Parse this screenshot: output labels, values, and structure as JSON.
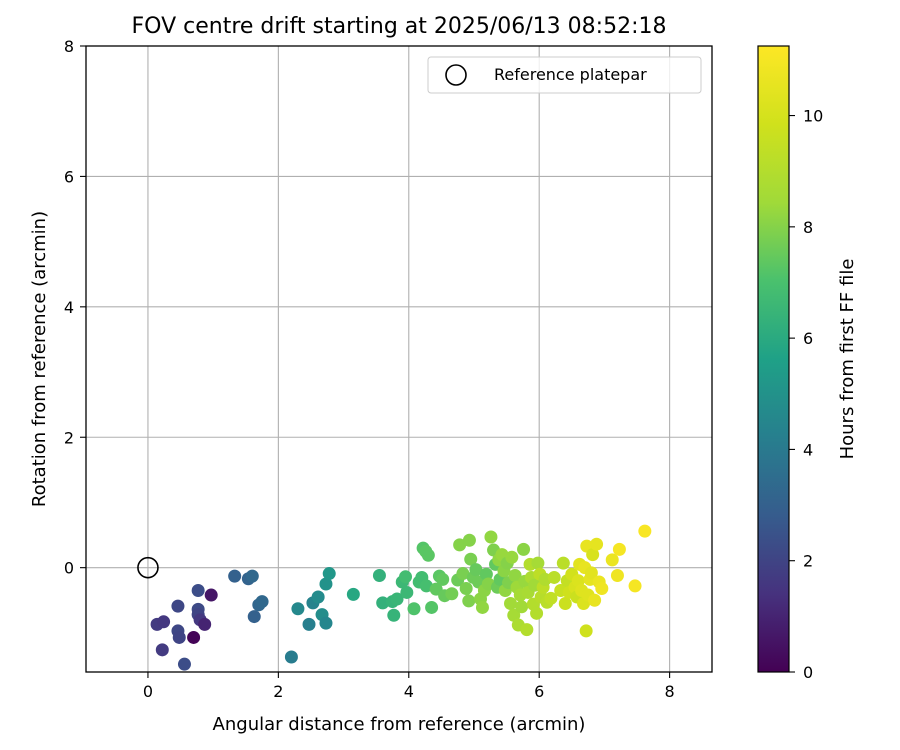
{
  "chart_data": {
    "type": "scatter",
    "title": "FOV centre drift starting at 2025/06/13 08:52:18",
    "xlabel": "Angular distance from reference (arcmin)",
    "ylabel": "Rotation from reference (arcmin)",
    "xlim": [
      -0.95,
      8.65
    ],
    "ylim": [
      -1.6,
      8.0
    ],
    "xticks": [
      0,
      2,
      4,
      6,
      8
    ],
    "yticks": [
      0,
      2,
      4,
      6,
      8
    ],
    "grid": true,
    "legend": {
      "position": "top-right",
      "entries": [
        "Reference platepar"
      ]
    },
    "reference_point": {
      "x": 0,
      "y": 0,
      "label": "Reference platepar"
    },
    "colorbar": {
      "label": "Hours from first FF file",
      "range": [
        0,
        11.25
      ],
      "ticks": [
        0,
        2,
        4,
        6,
        8,
        10
      ],
      "colormap": "viridis"
    },
    "points": [
      {
        "x": 0.14,
        "y": -0.87,
        "h": 1.7
      },
      {
        "x": 0.24,
        "y": -0.83,
        "h": 1.6
      },
      {
        "x": 0.22,
        "y": -1.26,
        "h": 1.7
      },
      {
        "x": 0.46,
        "y": -0.59,
        "h": 2.1
      },
      {
        "x": 0.46,
        "y": -0.97,
        "h": 2.1
      },
      {
        "x": 0.48,
        "y": -1.07,
        "h": 2.0
      },
      {
        "x": 0.56,
        "y": -1.48,
        "h": 2.3
      },
      {
        "x": 0.7,
        "y": -1.07,
        "h": 0.1
      },
      {
        "x": 0.77,
        "y": -0.35,
        "h": 2.3
      },
      {
        "x": 0.77,
        "y": -0.64,
        "h": 2.2
      },
      {
        "x": 0.77,
        "y": -0.72,
        "h": 2.0
      },
      {
        "x": 0.8,
        "y": -0.8,
        "h": 1.6
      },
      {
        "x": 0.87,
        "y": -0.87,
        "h": 1.0
      },
      {
        "x": 0.97,
        "y": -0.42,
        "h": 0.6
      },
      {
        "x": 1.33,
        "y": -0.13,
        "h": 3.0
      },
      {
        "x": 1.54,
        "y": -0.17,
        "h": 3.1
      },
      {
        "x": 1.6,
        "y": -0.13,
        "h": 3.3
      },
      {
        "x": 1.63,
        "y": -0.75,
        "h": 3.0
      },
      {
        "x": 1.7,
        "y": -0.57,
        "h": 3.2
      },
      {
        "x": 1.75,
        "y": -0.52,
        "h": 3.3
      },
      {
        "x": 2.2,
        "y": -1.37,
        "h": 4.1
      },
      {
        "x": 2.3,
        "y": -0.63,
        "h": 4.6
      },
      {
        "x": 2.47,
        "y": -0.87,
        "h": 4.2
      },
      {
        "x": 2.53,
        "y": -0.54,
        "h": 4.4
      },
      {
        "x": 2.61,
        "y": -0.45,
        "h": 4.7
      },
      {
        "x": 2.67,
        "y": -0.72,
        "h": 4.8
      },
      {
        "x": 2.73,
        "y": -0.85,
        "h": 4.5
      },
      {
        "x": 2.73,
        "y": -0.25,
        "h": 5.0
      },
      {
        "x": 2.78,
        "y": -0.09,
        "h": 5.2
      },
      {
        "x": 3.15,
        "y": -0.41,
        "h": 5.9
      },
      {
        "x": 3.55,
        "y": -0.12,
        "h": 6.3
      },
      {
        "x": 3.6,
        "y": -0.54,
        "h": 6.3
      },
      {
        "x": 3.75,
        "y": -0.52,
        "h": 6.4
      },
      {
        "x": 3.77,
        "y": -0.73,
        "h": 6.4
      },
      {
        "x": 3.82,
        "y": -0.48,
        "h": 6.5
      },
      {
        "x": 3.9,
        "y": -0.22,
        "h": 6.6
      },
      {
        "x": 3.95,
        "y": -0.14,
        "h": 6.8
      },
      {
        "x": 3.97,
        "y": -0.38,
        "h": 6.6
      },
      {
        "x": 4.08,
        "y": -0.63,
        "h": 7.1
      },
      {
        "x": 4.16,
        "y": -0.22,
        "h": 6.8
      },
      {
        "x": 4.2,
        "y": -0.15,
        "h": 6.8
      },
      {
        "x": 4.22,
        "y": 0.3,
        "h": 7.2
      },
      {
        "x": 4.26,
        "y": 0.25,
        "h": 7.3
      },
      {
        "x": 4.3,
        "y": 0.19,
        "h": 7.3
      },
      {
        "x": 4.27,
        "y": -0.28,
        "h": 6.9
      },
      {
        "x": 4.35,
        "y": -0.61,
        "h": 7.2
      },
      {
        "x": 4.42,
        "y": -0.33,
        "h": 7.4
      },
      {
        "x": 4.47,
        "y": -0.13,
        "h": 7.3
      },
      {
        "x": 4.52,
        "y": -0.18,
        "h": 7.4
      },
      {
        "x": 4.55,
        "y": -0.43,
        "h": 7.5
      },
      {
        "x": 4.66,
        "y": -0.4,
        "h": 7.7
      },
      {
        "x": 4.75,
        "y": -0.19,
        "h": 7.6
      },
      {
        "x": 4.78,
        "y": 0.35,
        "h": 8.0
      },
      {
        "x": 4.83,
        "y": -0.09,
        "h": 7.8
      },
      {
        "x": 4.88,
        "y": -0.32,
        "h": 7.8
      },
      {
        "x": 4.92,
        "y": -0.51,
        "h": 7.9
      },
      {
        "x": 4.93,
        "y": 0.42,
        "h": 8.0
      },
      {
        "x": 4.95,
        "y": 0.13,
        "h": 7.8
      },
      {
        "x": 4.99,
        "y": -0.15,
        "h": 7.6
      },
      {
        "x": 5.03,
        "y": -0.03,
        "h": 7.5
      },
      {
        "x": 5.07,
        "y": -0.22,
        "h": 7.6
      },
      {
        "x": 5.1,
        "y": -0.48,
        "h": 8.1
      },
      {
        "x": 5.13,
        "y": -0.61,
        "h": 8.2
      },
      {
        "x": 5.16,
        "y": -0.35,
        "h": 8.1
      },
      {
        "x": 5.19,
        "y": -0.1,
        "h": 7.4
      },
      {
        "x": 5.22,
        "y": -0.25,
        "h": 8.0
      },
      {
        "x": 5.26,
        "y": 0.47,
        "h": 8.2
      },
      {
        "x": 5.3,
        "y": 0.27,
        "h": 7.9
      },
      {
        "x": 5.33,
        "y": 0.05,
        "h": 7.4
      },
      {
        "x": 5.36,
        "y": -0.3,
        "h": 7.6
      },
      {
        "x": 5.38,
        "y": 0.12,
        "h": 8.2
      },
      {
        "x": 5.4,
        "y": -0.18,
        "h": 7.4
      },
      {
        "x": 5.43,
        "y": 0.2,
        "h": 8.3
      },
      {
        "x": 5.46,
        "y": -0.05,
        "h": 8.1
      },
      {
        "x": 5.48,
        "y": -0.35,
        "h": 8.2
      },
      {
        "x": 5.51,
        "y": 0.07,
        "h": 8.0
      },
      {
        "x": 5.53,
        "y": -0.23,
        "h": 7.9
      },
      {
        "x": 5.56,
        "y": -0.55,
        "h": 8.5
      },
      {
        "x": 5.58,
        "y": 0.16,
        "h": 8.3
      },
      {
        "x": 5.61,
        "y": -0.73,
        "h": 8.6
      },
      {
        "x": 5.63,
        "y": -0.12,
        "h": 8.2
      },
      {
        "x": 5.66,
        "y": -0.3,
        "h": 8.4
      },
      {
        "x": 5.68,
        "y": -0.88,
        "h": 8.8
      },
      {
        "x": 5.71,
        "y": -0.42,
        "h": 8.6
      },
      {
        "x": 5.73,
        "y": -0.6,
        "h": 8.5
      },
      {
        "x": 5.76,
        "y": 0.28,
        "h": 8.1
      },
      {
        "x": 5.78,
        "y": -0.21,
        "h": 8.3
      },
      {
        "x": 5.81,
        "y": -0.95,
        "h": 9.0
      },
      {
        "x": 5.83,
        "y": -0.38,
        "h": 8.7
      },
      {
        "x": 5.86,
        "y": 0.05,
        "h": 9.0
      },
      {
        "x": 5.88,
        "y": -0.15,
        "h": 8.8
      },
      {
        "x": 5.91,
        "y": -0.56,
        "h": 9.0
      },
      {
        "x": 5.93,
        "y": -0.27,
        "h": 8.5
      },
      {
        "x": 5.96,
        "y": -0.7,
        "h": 9.0
      },
      {
        "x": 5.98,
        "y": 0.07,
        "h": 8.6
      },
      {
        "x": 6.01,
        "y": -0.1,
        "h": 9.3
      },
      {
        "x": 6.03,
        "y": -0.45,
        "h": 9.1
      },
      {
        "x": 6.06,
        "y": -0.3,
        "h": 9.3
      },
      {
        "x": 6.09,
        "y": -0.18,
        "h": 8.9
      },
      {
        "x": 6.12,
        "y": -0.53,
        "h": 9.2
      },
      {
        "x": 6.18,
        "y": -0.47,
        "h": 9.4
      },
      {
        "x": 6.23,
        "y": -0.15,
        "h": 9.2
      },
      {
        "x": 6.33,
        "y": -0.35,
        "h": 9.6
      },
      {
        "x": 6.37,
        "y": 0.07,
        "h": 9.2
      },
      {
        "x": 6.4,
        "y": -0.55,
        "h": 9.7
      },
      {
        "x": 6.43,
        "y": -0.2,
        "h": 9.5
      },
      {
        "x": 6.46,
        "y": -0.38,
        "h": 9.8
      },
      {
        "x": 6.5,
        "y": -0.1,
        "h": 9.9
      },
      {
        "x": 6.55,
        "y": -0.3,
        "h": 10.1
      },
      {
        "x": 6.58,
        "y": -0.45,
        "h": 9.7
      },
      {
        "x": 6.6,
        "y": -0.2,
        "h": 10.2
      },
      {
        "x": 6.62,
        "y": 0.05,
        "h": 10.4
      },
      {
        "x": 6.65,
        "y": -0.35,
        "h": 10.3
      },
      {
        "x": 6.68,
        "y": -0.55,
        "h": 10.2
      },
      {
        "x": 6.7,
        "y": 0.0,
        "h": 10.6
      },
      {
        "x": 6.72,
        "y": -0.97,
        "h": 9.8
      },
      {
        "x": 6.73,
        "y": 0.33,
        "h": 10.6
      },
      {
        "x": 6.75,
        "y": -0.42,
        "h": 10.3
      },
      {
        "x": 6.78,
        "y": -0.18,
        "h": 10.5
      },
      {
        "x": 6.8,
        "y": -0.08,
        "h": 10.4
      },
      {
        "x": 6.82,
        "y": 0.2,
        "h": 10.1
      },
      {
        "x": 6.85,
        "y": -0.5,
        "h": 10.6
      },
      {
        "x": 6.88,
        "y": 0.36,
        "h": 10.5
      },
      {
        "x": 6.92,
        "y": -0.22,
        "h": 10.7
      },
      {
        "x": 6.96,
        "y": -0.32,
        "h": 10.8
      },
      {
        "x": 7.12,
        "y": 0.12,
        "h": 10.7
      },
      {
        "x": 7.2,
        "y": -0.12,
        "h": 10.8
      },
      {
        "x": 7.23,
        "y": 0.28,
        "h": 11.0
      },
      {
        "x": 7.47,
        "y": -0.28,
        "h": 11.0
      },
      {
        "x": 7.62,
        "y": 0.56,
        "h": 11.1
      }
    ]
  }
}
